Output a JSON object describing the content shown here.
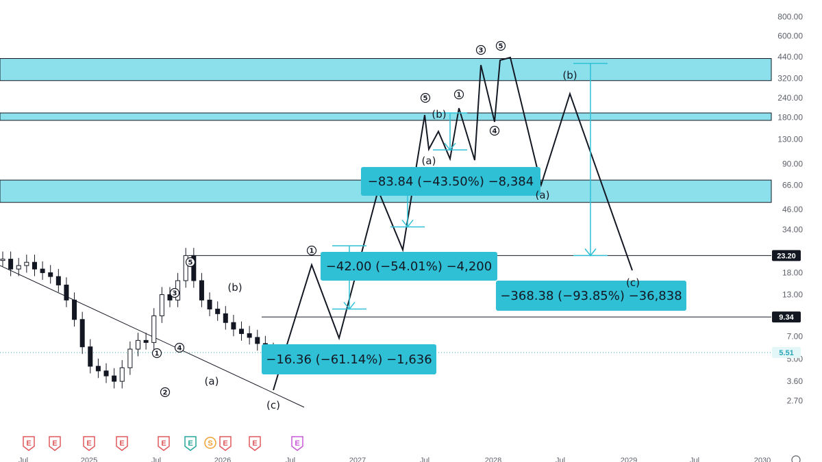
{
  "chart_data": {
    "type": "line",
    "title": "",
    "xlabel": "",
    "ylabel": "",
    "scale": "log",
    "grid": false,
    "ylim": [
      2.3,
      900
    ],
    "y_ticks": [
      "800.00",
      "600.00",
      "440.00",
      "320.00",
      "240.00",
      "180.00",
      "130.00",
      "90.00",
      "66.00",
      "46.00",
      "34.00",
      "23.20",
      "18.00",
      "13.00",
      "9.34",
      "7.00",
      "5.51",
      "5.00",
      "3.60",
      "2.70"
    ],
    "x_ticks": [
      "Jul",
      "2025",
      "Jul",
      "2026",
      "Jul",
      "2027",
      "Jul",
      "2028",
      "Jul",
      "2029",
      "Jul",
      "2030"
    ],
    "price_tags": [
      {
        "value": 23.2,
        "label": "23.20",
        "bg": "#131722",
        "fg": "#ffffff"
      },
      {
        "value": 9.34,
        "label": "9.34",
        "bg": "#131722",
        "fg": "#ffffff"
      },
      {
        "value": 5.51,
        "label": "5.51",
        "bg": "#e3f6f8",
        "fg": "#26a6b8"
      }
    ],
    "horizontal_levels": [
      {
        "value": 23.2
      },
      {
        "value": 9.34
      }
    ],
    "zones": [
      {
        "low": 310,
        "high": 430
      },
      {
        "low": 172,
        "high": 192
      },
      {
        "low": 51,
        "high": 71
      }
    ],
    "measures": [
      {
        "label": "−16.36 (−61.14%) −1,636",
        "from": 26.8,
        "to": 10.5
      },
      {
        "label": "−42.00 (−54.01%) −4,200",
        "from": 77,
        "to": 35.5
      },
      {
        "label": "−83.84 (−43.50%) −8,384",
        "from": 192,
        "to": 111
      },
      {
        "label": "−368.38 (−93.85%) −36,838",
        "from": 400,
        "to": 23.2
      }
    ],
    "wave_labels": [
      "①",
      "②",
      "③",
      "④",
      "⑤",
      "(a)",
      "(b)",
      "(c)",
      "①",
      "⑤",
      "(a)",
      "(b)",
      "①",
      "③",
      "④",
      "⑤",
      "(a)",
      "(b)",
      "(c)"
    ],
    "events": [
      "E",
      "E",
      "E",
      "E",
      "E",
      "E",
      "S",
      "E",
      "E",
      "E"
    ],
    "series": [
      {
        "values": [
          22,
          19,
          20,
          21,
          19,
          18,
          17,
          15,
          12,
          9,
          6,
          4.5,
          4.2,
          3.9,
          3.6,
          4.4,
          5.8,
          6.6,
          6.4,
          9.5,
          13,
          12,
          16,
          23.2,
          16,
          12,
          10.5,
          9.8,
          8.6,
          7.8,
          7.3,
          6.9,
          6.3,
          5.7,
          5.51
        ]
      }
    ]
  },
  "ui": {
    "price_axis_color": "#5b5f68",
    "zone_color": "#8be0ec",
    "measure_color": "#2fc0d6"
  }
}
